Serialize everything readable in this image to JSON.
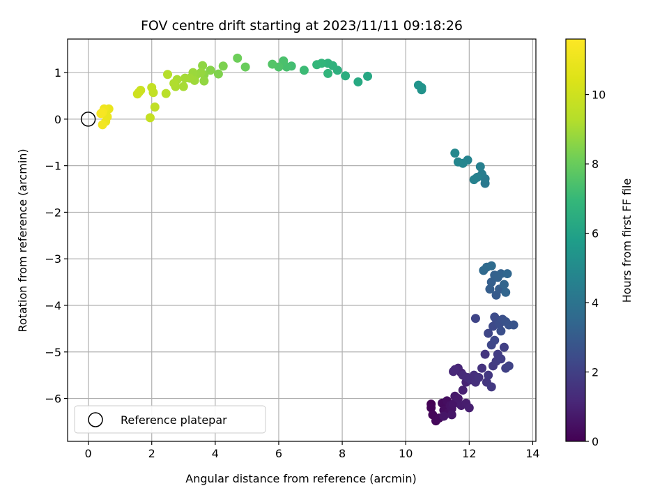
{
  "chart_data": {
    "type": "scatter",
    "title": "FOV centre drift starting at 2023/11/11 09:18:26",
    "xlabel": "Angular distance from reference (arcmin)",
    "ylabel": "Rotation from reference (arcmin)",
    "xlim": [
      -0.65,
      14.1
    ],
    "ylim": [
      -6.92,
      1.72
    ],
    "xticks": [
      0,
      2,
      4,
      6,
      8,
      10,
      12,
      14
    ],
    "yticks": [
      1,
      0,
      -1,
      -2,
      -3,
      -4,
      -5,
      -6
    ],
    "xtick_labels": [
      "0",
      "2",
      "4",
      "6",
      "8",
      "10",
      "12",
      "14"
    ],
    "ytick_labels": [
      "1",
      "0",
      "−1",
      "−2",
      "−3",
      "−4",
      "−5",
      "−6"
    ],
    "grid": true,
    "legend": {
      "position": "lower-left",
      "entries": [
        "Reference platepar"
      ]
    },
    "reference_point": {
      "x": 0,
      "y": 0
    },
    "colorbar": {
      "label": "Hours from first FF file",
      "range": [
        0,
        11.6
      ],
      "ticks": [
        0,
        2,
        4,
        6,
        8,
        10
      ],
      "tick_labels": [
        "0",
        "2",
        "4",
        "6",
        "8",
        "10"
      ],
      "colormap": "viridis"
    },
    "points": [
      {
        "x": 10.8,
        "y": -6.12,
        "h": 0.0
      },
      {
        "x": 10.8,
        "y": -6.2,
        "h": 0.1
      },
      {
        "x": 10.85,
        "y": -6.35,
        "h": 0.15
      },
      {
        "x": 10.95,
        "y": -6.48,
        "h": 0.2
      },
      {
        "x": 11.05,
        "y": -6.42,
        "h": 0.25
      },
      {
        "x": 11.15,
        "y": -6.1,
        "h": 0.3
      },
      {
        "x": 11.2,
        "y": -6.25,
        "h": 0.35
      },
      {
        "x": 11.3,
        "y": -6.05,
        "h": 0.4
      },
      {
        "x": 11.35,
        "y": -6.3,
        "h": 0.45
      },
      {
        "x": 11.4,
        "y": -6.15,
        "h": 0.5
      },
      {
        "x": 11.45,
        "y": -6.22,
        "h": 0.55
      },
      {
        "x": 11.5,
        "y": -6.12,
        "h": 0.6
      },
      {
        "x": 11.2,
        "y": -6.38,
        "h": 0.62
      },
      {
        "x": 11.45,
        "y": -6.35,
        "h": 0.65
      },
      {
        "x": 11.55,
        "y": -5.95,
        "h": 0.7
      },
      {
        "x": 11.65,
        "y": -6.0,
        "h": 0.75
      },
      {
        "x": 11.75,
        "y": -6.15,
        "h": 0.8
      },
      {
        "x": 11.9,
        "y": -6.1,
        "h": 0.85
      },
      {
        "x": 12.0,
        "y": -6.2,
        "h": 0.9
      },
      {
        "x": 11.8,
        "y": -5.82,
        "h": 0.95
      },
      {
        "x": 11.9,
        "y": -5.65,
        "h": 1.0
      },
      {
        "x": 11.75,
        "y": -5.45,
        "h": 1.05
      },
      {
        "x": 11.65,
        "y": -5.35,
        "h": 1.1
      },
      {
        "x": 11.5,
        "y": -5.42,
        "h": 1.15
      },
      {
        "x": 11.55,
        "y": -5.38,
        "h": 1.2
      },
      {
        "x": 11.8,
        "y": -5.5,
        "h": 1.25
      },
      {
        "x": 11.95,
        "y": -5.55,
        "h": 1.3
      },
      {
        "x": 12.05,
        "y": -5.6,
        "h": 1.35
      },
      {
        "x": 12.15,
        "y": -5.5,
        "h": 1.4
      },
      {
        "x": 12.2,
        "y": -5.65,
        "h": 1.45
      },
      {
        "x": 12.3,
        "y": -5.55,
        "h": 1.5
      },
      {
        "x": 12.4,
        "y": -5.35,
        "h": 1.55
      },
      {
        "x": 12.5,
        "y": -5.05,
        "h": 1.6
      },
      {
        "x": 12.55,
        "y": -5.65,
        "h": 1.65
      },
      {
        "x": 12.6,
        "y": -5.5,
        "h": 1.7
      },
      {
        "x": 12.7,
        "y": -5.75,
        "h": 1.75
      },
      {
        "x": 12.75,
        "y": -5.3,
        "h": 1.8
      },
      {
        "x": 12.85,
        "y": -5.2,
        "h": 1.85
      },
      {
        "x": 12.9,
        "y": -5.05,
        "h": 1.9
      },
      {
        "x": 13.0,
        "y": -5.15,
        "h": 1.95
      },
      {
        "x": 13.1,
        "y": -4.9,
        "h": 2.0
      },
      {
        "x": 13.15,
        "y": -5.35,
        "h": 2.05
      },
      {
        "x": 13.25,
        "y": -5.3,
        "h": 2.1
      },
      {
        "x": 12.2,
        "y": -4.28,
        "h": 2.15
      },
      {
        "x": 12.6,
        "y": -4.6,
        "h": 2.2
      },
      {
        "x": 12.7,
        "y": -4.85,
        "h": 2.25
      },
      {
        "x": 12.8,
        "y": -4.75,
        "h": 2.3
      },
      {
        "x": 12.75,
        "y": -4.45,
        "h": 2.35
      },
      {
        "x": 12.85,
        "y": -4.3,
        "h": 2.4
      },
      {
        "x": 12.8,
        "y": -4.25,
        "h": 2.45
      },
      {
        "x": 12.95,
        "y": -4.4,
        "h": 2.5
      },
      {
        "x": 13.0,
        "y": -4.55,
        "h": 2.55
      },
      {
        "x": 13.05,
        "y": -4.3,
        "h": 2.6
      },
      {
        "x": 13.15,
        "y": -4.35,
        "h": 2.65
      },
      {
        "x": 13.25,
        "y": -4.42,
        "h": 2.7
      },
      {
        "x": 13.4,
        "y": -4.42,
        "h": 2.75
      },
      {
        "x": 12.85,
        "y": -3.78,
        "h": 3.0
      },
      {
        "x": 12.95,
        "y": -3.65,
        "h": 3.05
      },
      {
        "x": 12.65,
        "y": -3.65,
        "h": 3.1
      },
      {
        "x": 12.7,
        "y": -3.5,
        "h": 3.15
      },
      {
        "x": 12.8,
        "y": -3.35,
        "h": 3.2
      },
      {
        "x": 12.9,
        "y": -3.4,
        "h": 3.25
      },
      {
        "x": 13.0,
        "y": -3.32,
        "h": 3.3
      },
      {
        "x": 13.1,
        "y": -3.55,
        "h": 3.35
      },
      {
        "x": 13.15,
        "y": -3.72,
        "h": 3.4
      },
      {
        "x": 13.2,
        "y": -3.32,
        "h": 3.45
      },
      {
        "x": 12.45,
        "y": -3.25,
        "h": 3.55
      },
      {
        "x": 12.55,
        "y": -3.18,
        "h": 3.6
      },
      {
        "x": 12.7,
        "y": -3.15,
        "h": 3.65
      },
      {
        "x": 12.5,
        "y": -1.38,
        "h": 4.2
      },
      {
        "x": 12.5,
        "y": -1.28,
        "h": 4.3
      },
      {
        "x": 12.4,
        "y": -1.18,
        "h": 4.4
      },
      {
        "x": 12.35,
        "y": -1.02,
        "h": 4.5
      },
      {
        "x": 12.25,
        "y": -1.25,
        "h": 4.55
      },
      {
        "x": 12.15,
        "y": -1.3,
        "h": 4.6
      },
      {
        "x": 11.95,
        "y": -0.88,
        "h": 4.7
      },
      {
        "x": 11.8,
        "y": -0.95,
        "h": 4.75
      },
      {
        "x": 11.65,
        "y": -0.92,
        "h": 4.8
      },
      {
        "x": 11.55,
        "y": -0.73,
        "h": 4.9
      },
      {
        "x": 10.5,
        "y": 0.63,
        "h": 5.3
      },
      {
        "x": 10.5,
        "y": 0.68,
        "h": 5.35
      },
      {
        "x": 10.4,
        "y": 0.73,
        "h": 5.4
      },
      {
        "x": 8.8,
        "y": 0.92,
        "h": 6.2
      },
      {
        "x": 8.5,
        "y": 0.8,
        "h": 6.3
      },
      {
        "x": 8.1,
        "y": 0.93,
        "h": 6.5
      },
      {
        "x": 7.85,
        "y": 1.05,
        "h": 6.6
      },
      {
        "x": 7.7,
        "y": 1.15,
        "h": 6.7
      },
      {
        "x": 7.55,
        "y": 1.2,
        "h": 6.75
      },
      {
        "x": 7.55,
        "y": 0.98,
        "h": 6.8
      },
      {
        "x": 7.35,
        "y": 1.2,
        "h": 6.85
      },
      {
        "x": 7.2,
        "y": 1.17,
        "h": 6.9
      },
      {
        "x": 6.8,
        "y": 1.05,
        "h": 7.1
      },
      {
        "x": 6.4,
        "y": 1.14,
        "h": 7.25
      },
      {
        "x": 6.25,
        "y": 1.12,
        "h": 7.35
      },
      {
        "x": 6.15,
        "y": 1.25,
        "h": 7.4
      },
      {
        "x": 6.0,
        "y": 1.12,
        "h": 7.5
      },
      {
        "x": 5.8,
        "y": 1.18,
        "h": 7.6
      },
      {
        "x": 4.95,
        "y": 1.12,
        "h": 8.0
      },
      {
        "x": 4.7,
        "y": 1.31,
        "h": 8.1
      },
      {
        "x": 4.25,
        "y": 1.14,
        "h": 8.35
      },
      {
        "x": 4.1,
        "y": 0.97,
        "h": 8.4
      },
      {
        "x": 3.85,
        "y": 1.05,
        "h": 8.5
      },
      {
        "x": 3.65,
        "y": 0.95,
        "h": 8.6
      },
      {
        "x": 3.6,
        "y": 1.15,
        "h": 8.65
      },
      {
        "x": 3.65,
        "y": 0.82,
        "h": 8.7
      },
      {
        "x": 3.55,
        "y": 1.0,
        "h": 8.75
      },
      {
        "x": 3.4,
        "y": 0.95,
        "h": 8.8
      },
      {
        "x": 3.3,
        "y": 1.0,
        "h": 8.85
      },
      {
        "x": 3.35,
        "y": 0.83,
        "h": 8.9
      },
      {
        "x": 3.2,
        "y": 0.88,
        "h": 8.95
      },
      {
        "x": 3.05,
        "y": 0.88,
        "h": 9.0
      },
      {
        "x": 3.0,
        "y": 0.7,
        "h": 9.05
      },
      {
        "x": 2.8,
        "y": 0.85,
        "h": 9.1
      },
      {
        "x": 2.75,
        "y": 0.7,
        "h": 9.15
      },
      {
        "x": 2.7,
        "y": 0.77,
        "h": 9.2
      },
      {
        "x": 2.5,
        "y": 0.96,
        "h": 9.3
      },
      {
        "x": 2.45,
        "y": 0.55,
        "h": 9.4
      },
      {
        "x": 2.1,
        "y": 0.26,
        "h": 9.6
      },
      {
        "x": 2.05,
        "y": 0.57,
        "h": 9.65
      },
      {
        "x": 2.0,
        "y": 0.68,
        "h": 9.7
      },
      {
        "x": 1.95,
        "y": 0.03,
        "h": 9.75
      },
      {
        "x": 1.65,
        "y": 0.62,
        "h": 9.9
      },
      {
        "x": 1.6,
        "y": 0.58,
        "h": 9.95
      },
      {
        "x": 1.55,
        "y": 0.54,
        "h": 10.0
      },
      {
        "x": 0.65,
        "y": 0.22,
        "h": 10.9
      },
      {
        "x": 0.6,
        "y": 0.05,
        "h": 10.95
      },
      {
        "x": 0.55,
        "y": -0.05,
        "h": 11.0
      },
      {
        "x": 0.5,
        "y": 0.22,
        "h": 11.1
      },
      {
        "x": 0.45,
        "y": -0.12,
        "h": 11.2
      },
      {
        "x": 0.45,
        "y": 0.15,
        "h": 11.3
      },
      {
        "x": 0.4,
        "y": 0.12,
        "h": 11.4
      }
    ]
  }
}
